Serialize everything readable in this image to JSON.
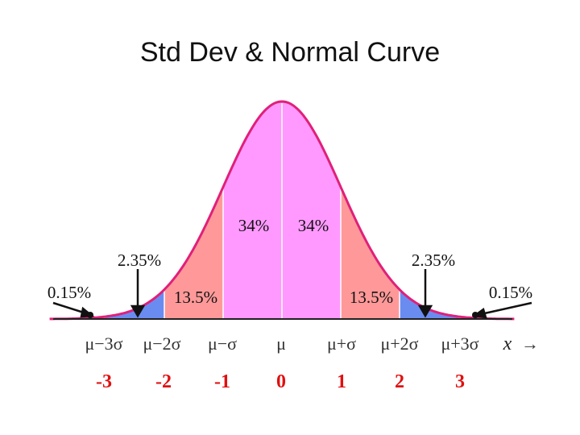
{
  "title": "Std Dev & Normal Curve",
  "colors": {
    "center_band": "#ff99ff",
    "one_to_two_band": "#ff9999",
    "two_to_three_band": "#6a8cf0",
    "curve": "#e0207a",
    "z_values": "#e01010"
  },
  "regions": {
    "center_left": "34%",
    "center_right": "34%",
    "band2_left": "13.5%",
    "band2_right": "13.5%",
    "band3_left": "2.35%",
    "band3_right": "2.35%",
    "tail_left": "0.15%",
    "tail_right": "0.15%"
  },
  "sigma_labels": [
    "μ−3σ",
    "μ−2σ",
    "μ−σ",
    "μ",
    "μ+σ",
    "μ+2σ",
    "μ+3σ"
  ],
  "axis_variable": "x",
  "axis_arrow": "→",
  "z_values": [
    "-3",
    "-2",
    "-1",
    "0",
    "1",
    "2",
    "3"
  ]
}
